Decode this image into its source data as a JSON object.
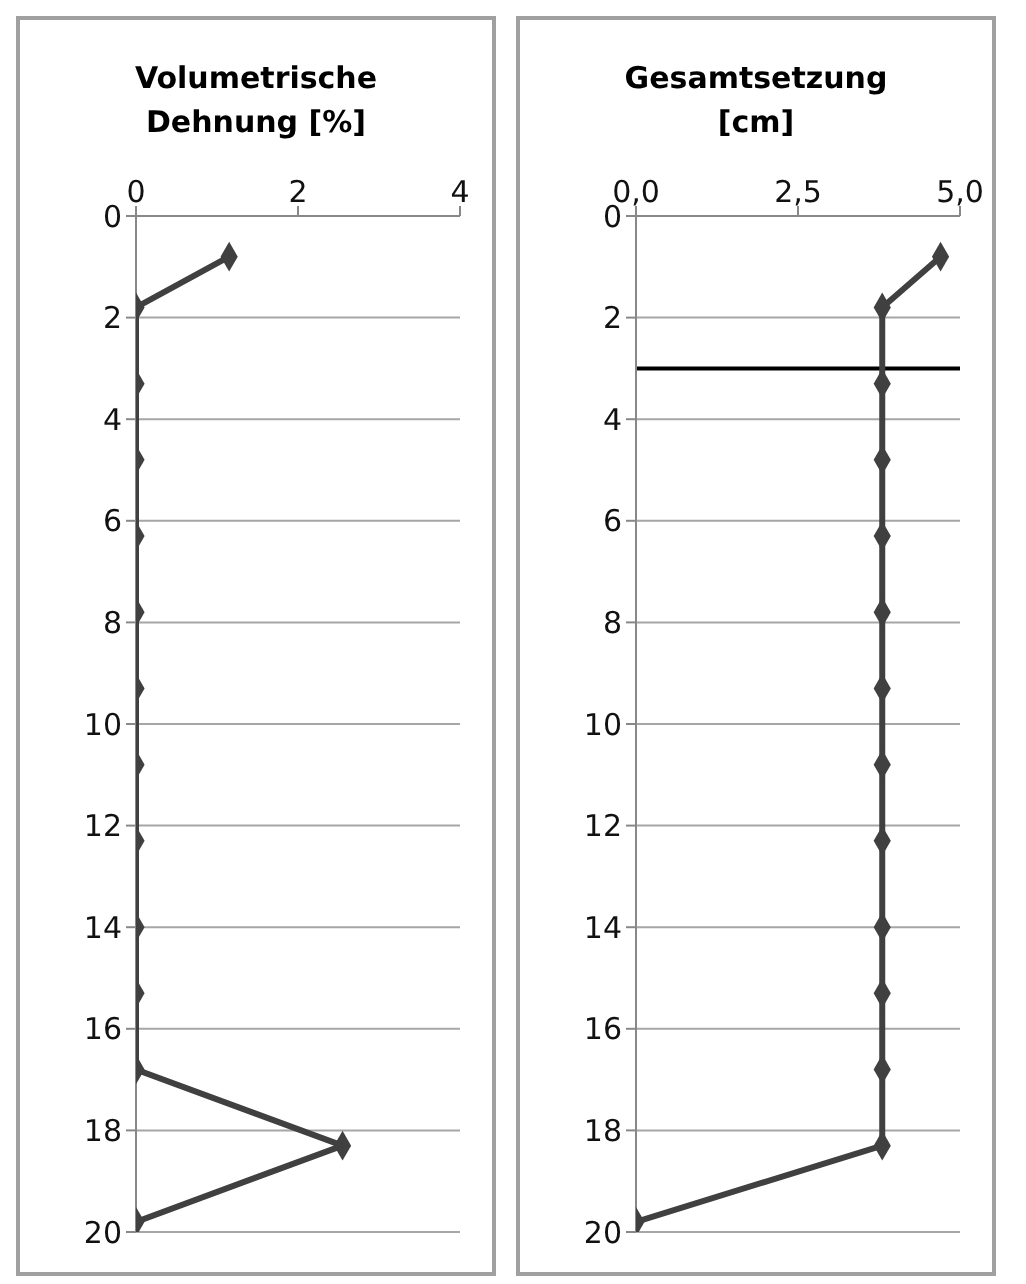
{
  "chart_data": [
    {
      "type": "line",
      "title": "Volumetrische Dehnung [%]",
      "xlim": [
        0,
        4
      ],
      "xticks": [
        0,
        2,
        4
      ],
      "ylim": [
        20,
        0
      ],
      "yticks": [
        0,
        2,
        4,
        6,
        8,
        10,
        12,
        14,
        16,
        18,
        20
      ],
      "grid": "y",
      "marker": "diamond",
      "legend": false,
      "series": [
        {
          "color": "#404040",
          "x": [
            1.15,
            0,
            0,
            0,
            0,
            0,
            0,
            0,
            0,
            0,
            0,
            0,
            2.55,
            0
          ],
          "values": [
            0.8,
            1.8,
            3.3,
            4.8,
            6.3,
            7.8,
            9.3,
            10.8,
            12.3,
            14.0,
            15.3,
            16.8,
            18.3,
            19.8
          ]
        }
      ]
    },
    {
      "type": "line",
      "title": "Gesamtsetzung [cm]",
      "xlim": [
        0,
        5
      ],
      "xticks": [
        {
          "value": 0,
          "label": "0,0"
        },
        {
          "value": 2.5,
          "label": "2,5"
        },
        {
          "value": 5,
          "label": "5,0"
        }
      ],
      "ylim": [
        20,
        0
      ],
      "yticks": [
        0,
        2,
        4,
        6,
        8,
        10,
        12,
        14,
        16,
        18,
        20
      ],
      "grid": "y",
      "marker": "diamond",
      "legend": false,
      "ref_lines": [
        {
          "axis": "y",
          "value": 3.0,
          "color": "#000000"
        }
      ],
      "series": [
        {
          "color": "#404040",
          "x": [
            4.7,
            3.8,
            3.8,
            3.8,
            3.8,
            3.8,
            3.8,
            3.8,
            3.8,
            3.8,
            3.8,
            3.8,
            3.8,
            0
          ],
          "values": [
            0.8,
            1.8,
            3.3,
            4.8,
            6.3,
            7.8,
            9.3,
            10.8,
            12.3,
            14.0,
            15.3,
            16.8,
            18.3,
            19.8
          ]
        }
      ]
    }
  ]
}
